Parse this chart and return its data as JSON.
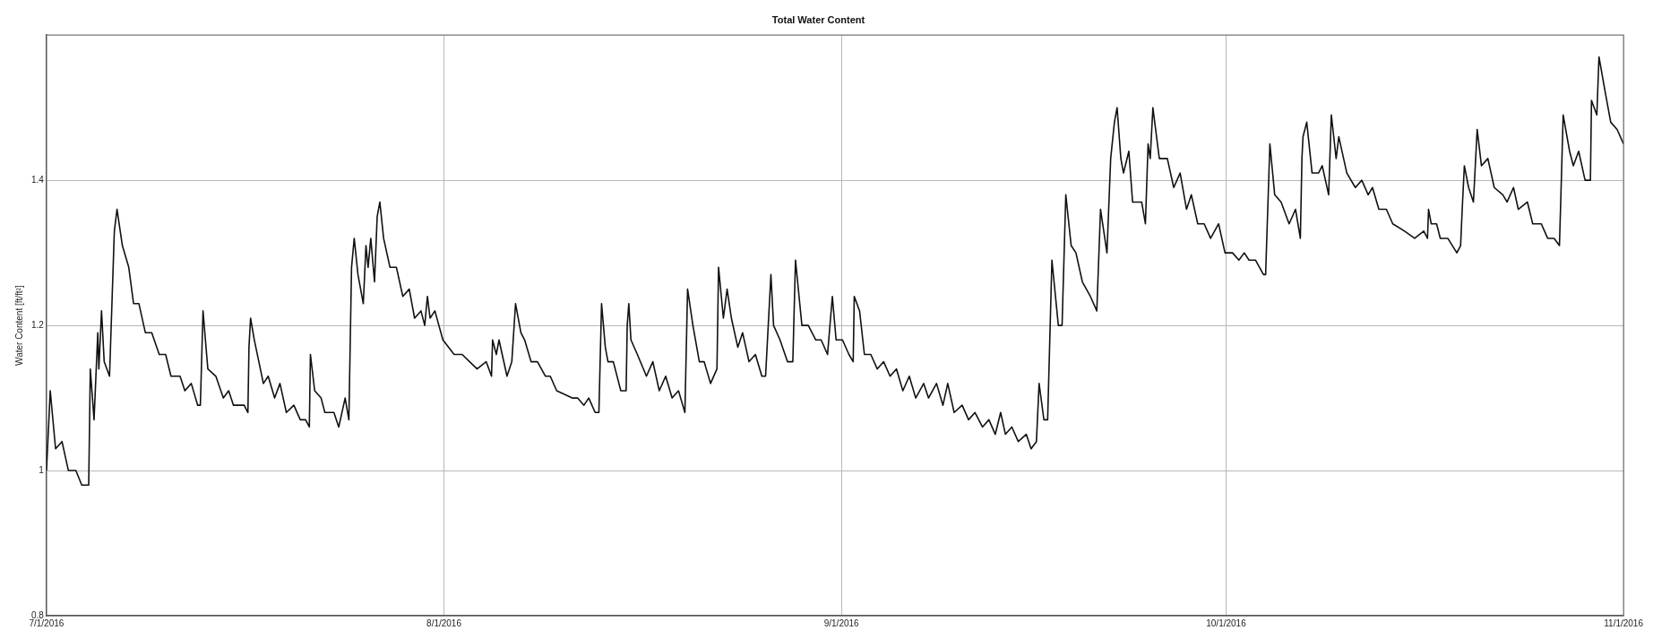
{
  "chart_data": {
    "type": "line",
    "title": "Total Water Content",
    "ylabel": "Water Content [ft/ft²]",
    "xlim": [
      "2016-07-01",
      "2016-11-01"
    ],
    "xticks": [
      {
        "value": "2016-07-01",
        "label": "7/1/2016"
      },
      {
        "value": "2016-08-01",
        "label": "8/1/2016"
      },
      {
        "value": "2016-09-01",
        "label": "9/1/2016"
      },
      {
        "value": "2016-10-01",
        "label": "10/1/2016"
      },
      {
        "value": "2016-11-01",
        "label": "11/1/2016"
      }
    ],
    "ylim": [
      0.8,
      1.6
    ],
    "yticks": [
      0.8,
      1,
      1.2,
      1.4
    ],
    "grid": true,
    "legend": false,
    "marker": "none",
    "line_style": "solid",
    "x": [
      "2016-07-01T00:00",
      "2016-07-01T07:00",
      "2016-07-01T17:00",
      "2016-07-02T05:00",
      "2016-07-02T17:00",
      "2016-07-03T07:00",
      "2016-07-03T18:00",
      "2016-07-04T07:00",
      "2016-07-04T10:00",
      "2016-07-04T17:00",
      "2016-07-05T00:00",
      "2016-07-05T02:00",
      "2016-07-05T07:00",
      "2016-07-05T12:00",
      "2016-07-05T22:00",
      "2016-07-06T07:00",
      "2016-07-06T12:00",
      "2016-07-06T22:00",
      "2016-07-07T10:00",
      "2016-07-07T19:00",
      "2016-07-08T05:00",
      "2016-07-08T17:00",
      "2016-07-09T05:00",
      "2016-07-09T19:00",
      "2016-07-10T07:00",
      "2016-07-10T17:00",
      "2016-07-11T10:00",
      "2016-07-11T19:00",
      "2016-07-12T07:00",
      "2016-07-12T19:00",
      "2016-07-13T00:00",
      "2016-07-13T05:00",
      "2016-07-13T14:00",
      "2016-07-14T05:00",
      "2016-07-14T19:00",
      "2016-07-15T05:00",
      "2016-07-15T14:00",
      "2016-07-16T10:00",
      "2016-07-16T17:00",
      "2016-07-16T19:00",
      "2016-07-16T22:00",
      "2016-07-17T05:00",
      "2016-07-17T22:00",
      "2016-07-18T07:00",
      "2016-07-18T19:00",
      "2016-07-19T05:00",
      "2016-07-19T17:00",
      "2016-07-20T07:00",
      "2016-07-20T19:00",
      "2016-07-21T05:00",
      "2016-07-21T12:00",
      "2016-07-21T14:00",
      "2016-07-21T22:00",
      "2016-07-22T10:00",
      "2016-07-22T17:00",
      "2016-07-23T10:00",
      "2016-07-23T19:00",
      "2016-07-24T07:00",
      "2016-07-24T14:00",
      "2016-07-24T19:00",
      "2016-07-25T00:00",
      "2016-07-25T07:00",
      "2016-07-25T17:00",
      "2016-07-25T22:00",
      "2016-07-26T02:00",
      "2016-07-26T07:00",
      "2016-07-26T14:00",
      "2016-07-26T19:00",
      "2016-07-27T00:00",
      "2016-07-27T07:00",
      "2016-07-27T19:00",
      "2016-07-28T07:00",
      "2016-07-28T19:00",
      "2016-07-29T07:00",
      "2016-07-29T17:00",
      "2016-07-30T05:00",
      "2016-07-30T12:00",
      "2016-07-30T17:00",
      "2016-07-30T22:00",
      "2016-07-31T07:00",
      "2016-07-31T22:00",
      "2016-08-01T19:00",
      "2016-08-02T10:00",
      "2016-08-03T00:00",
      "2016-08-03T14:00",
      "2016-08-04T07:00",
      "2016-08-04T17:00",
      "2016-08-04T19:00",
      "2016-08-05T02:00",
      "2016-08-05T07:00",
      "2016-08-05T22:00",
      "2016-08-06T07:00",
      "2016-08-06T14:00",
      "2016-08-07T00:00",
      "2016-08-07T07:00",
      "2016-08-07T19:00",
      "2016-08-08T07:00",
      "2016-08-08T22:00",
      "2016-08-09T07:00",
      "2016-08-09T19:00",
      "2016-08-11T00:00",
      "2016-08-11T10:00",
      "2016-08-11T22:00",
      "2016-08-12T07:00",
      "2016-08-12T19:00",
      "2016-08-13T02:00",
      "2016-08-13T07:00",
      "2016-08-13T14:00",
      "2016-08-13T19:00",
      "2016-08-14T05:00",
      "2016-08-14T19:00",
      "2016-08-15T05:00",
      "2016-08-15T07:00",
      "2016-08-15T10:00",
      "2016-08-15T14:00",
      "2016-08-16T02:00",
      "2016-08-16T19:00",
      "2016-08-17T07:00",
      "2016-08-17T19:00",
      "2016-08-18T07:00",
      "2016-08-18T19:00",
      "2016-08-19T07:00",
      "2016-08-19T19:00",
      "2016-08-20T00:00",
      "2016-08-20T10:00",
      "2016-08-20T22:00",
      "2016-08-21T07:00",
      "2016-08-21T19:00",
      "2016-08-22T07:00",
      "2016-08-22T10:00",
      "2016-08-22T19:00",
      "2016-08-23T02:00",
      "2016-08-23T10:00",
      "2016-08-23T22:00",
      "2016-08-24T07:00",
      "2016-08-24T19:00",
      "2016-08-25T07:00",
      "2016-08-25T19:00",
      "2016-08-26T02:00",
      "2016-08-26T07:00",
      "2016-08-26T12:00",
      "2016-08-26T17:00",
      "2016-08-27T05:00",
      "2016-08-27T19:00",
      "2016-08-28T05:00",
      "2016-08-28T10:00",
      "2016-08-28T22:00",
      "2016-08-29T10:00",
      "2016-08-30T00:00",
      "2016-08-30T10:00",
      "2016-08-30T22:00",
      "2016-08-31T07:00",
      "2016-08-31T14:00",
      "2016-09-01T02:00",
      "2016-09-01T14:00",
      "2016-09-01T22:00",
      "2016-09-02T00:00",
      "2016-09-02T10:00",
      "2016-09-02T19:00",
      "2016-09-03T07:00",
      "2016-09-03T19:00",
      "2016-09-04T07:00",
      "2016-09-04T19:00",
      "2016-09-05T07:00",
      "2016-09-05T19:00",
      "2016-09-06T07:00",
      "2016-09-06T19:00",
      "2016-09-07T10:00",
      "2016-09-07T19:00",
      "2016-09-08T10:00",
      "2016-09-08T22:00",
      "2016-09-09T07:00",
      "2016-09-09T19:00",
      "2016-09-10T10:00",
      "2016-09-10T22:00",
      "2016-09-11T10:00",
      "2016-09-12T00:00",
      "2016-09-12T12:00",
      "2016-09-13T00:00",
      "2016-09-13T10:00",
      "2016-09-13T19:00",
      "2016-09-14T07:00",
      "2016-09-14T19:00",
      "2016-09-15T10:00",
      "2016-09-15T19:00",
      "2016-09-16T05:00",
      "2016-09-16T10:00",
      "2016-09-16T19:00",
      "2016-09-17T02:00",
      "2016-09-17T10:00",
      "2016-09-17T22:00",
      "2016-09-18T05:00",
      "2016-09-18T12:00",
      "2016-09-18T22:00",
      "2016-09-19T07:00",
      "2016-09-19T19:00",
      "2016-09-20T10:00",
      "2016-09-20T22:00",
      "2016-09-21T05:00",
      "2016-09-21T17:00",
      "2016-09-22T00:00",
      "2016-09-22T07:00",
      "2016-09-22T12:00",
      "2016-09-22T19:00",
      "2016-09-23T00:00",
      "2016-09-23T10:00",
      "2016-09-23T17:00",
      "2016-09-24T10:00",
      "2016-09-24T17:00",
      "2016-09-24T22:00",
      "2016-09-25T02:00",
      "2016-09-25T07:00",
      "2016-09-25T19:00",
      "2016-09-26T10:00",
      "2016-09-26T22:00",
      "2016-09-27T10:00",
      "2016-09-27T22:00",
      "2016-09-28T07:00",
      "2016-09-28T19:00",
      "2016-09-29T07:00",
      "2016-09-29T19:00",
      "2016-09-30T10:00",
      "2016-09-30T22:00",
      "2016-10-01T12:00",
      "2016-10-02T00:00",
      "2016-10-02T10:00",
      "2016-10-02T19:00",
      "2016-10-03T07:00",
      "2016-10-03T22:00",
      "2016-10-04T02:00",
      "2016-10-04T10:00",
      "2016-10-04T19:00",
      "2016-10-05T07:00",
      "2016-10-05T22:00",
      "2016-10-06T10:00",
      "2016-10-06T19:00",
      "2016-10-06T22:00",
      "2016-10-07T00:00",
      "2016-10-07T07:00",
      "2016-10-07T17:00",
      "2016-10-08T05:00",
      "2016-10-08T12:00",
      "2016-10-09T00:00",
      "2016-10-09T05:00",
      "2016-10-09T14:00",
      "2016-10-09T19:00",
      "2016-10-10T10:00",
      "2016-10-11T02:00",
      "2016-10-11T14:00",
      "2016-10-12T02:00",
      "2016-10-12T10:00",
      "2016-10-12T22:00",
      "2016-10-13T12:00",
      "2016-10-14T00:00",
      "2016-10-14T22:00",
      "2016-10-15T17:00",
      "2016-10-16T10:00",
      "2016-10-16T17:00",
      "2016-10-16T19:00",
      "2016-10-17T00:00",
      "2016-10-17T10:00",
      "2016-10-17T17:00",
      "2016-10-18T07:00",
      "2016-10-19T00:00",
      "2016-10-19T07:00",
      "2016-10-19T10:00",
      "2016-10-19T14:00",
      "2016-10-19T22:00",
      "2016-10-20T07:00",
      "2016-10-20T14:00",
      "2016-10-20T22:00",
      "2016-10-21T10:00",
      "2016-10-21T22:00",
      "2016-10-22T14:00",
      "2016-10-22T22:00",
      "2016-10-23T10:00",
      "2016-10-23T19:00",
      "2016-10-24T12:00",
      "2016-10-24T22:00",
      "2016-10-25T14:00",
      "2016-10-26T02:00",
      "2016-10-26T14:00",
      "2016-10-27T00:00",
      "2016-10-27T02:00",
      "2016-10-27T07:00",
      "2016-10-27T19:00",
      "2016-10-28T02:00",
      "2016-10-28T12:00",
      "2016-10-29T00:00",
      "2016-10-29T10:00",
      "2016-10-29T12:00",
      "2016-10-29T22:00",
      "2016-10-30T02:00",
      "2016-10-30T14:00",
      "2016-10-31T00:00",
      "2016-10-31T12:00",
      "2016-11-01T00:00"
    ],
    "series": [
      {
        "color": "#111111",
        "values": [
          1.0,
          1.11,
          1.03,
          1.04,
          1.0,
          1.0,
          0.98,
          0.98,
          1.14,
          1.07,
          1.19,
          1.14,
          1.22,
          1.15,
          1.13,
          1.33,
          1.36,
          1.31,
          1.28,
          1.23,
          1.23,
          1.19,
          1.19,
          1.16,
          1.16,
          1.13,
          1.13,
          1.11,
          1.12,
          1.09,
          1.09,
          1.22,
          1.14,
          1.13,
          1.1,
          1.11,
          1.09,
          1.09,
          1.08,
          1.17,
          1.21,
          1.18,
          1.12,
          1.13,
          1.1,
          1.12,
          1.08,
          1.09,
          1.07,
          1.07,
          1.06,
          1.16,
          1.11,
          1.1,
          1.08,
          1.08,
          1.06,
          1.1,
          1.07,
          1.28,
          1.32,
          1.27,
          1.23,
          1.31,
          1.28,
          1.32,
          1.26,
          1.35,
          1.37,
          1.32,
          1.28,
          1.28,
          1.24,
          1.25,
          1.21,
          1.22,
          1.2,
          1.24,
          1.21,
          1.22,
          1.18,
          1.16,
          1.16,
          1.15,
          1.14,
          1.15,
          1.13,
          1.18,
          1.16,
          1.18,
          1.13,
          1.15,
          1.23,
          1.19,
          1.18,
          1.15,
          1.15,
          1.13,
          1.13,
          1.11,
          1.1,
          1.1,
          1.09,
          1.1,
          1.08,
          1.08,
          1.23,
          1.17,
          1.15,
          1.15,
          1.11,
          1.11,
          1.2,
          1.23,
          1.18,
          1.16,
          1.13,
          1.15,
          1.11,
          1.13,
          1.1,
          1.11,
          1.08,
          1.25,
          1.2,
          1.15,
          1.15,
          1.12,
          1.14,
          1.28,
          1.21,
          1.25,
          1.21,
          1.17,
          1.19,
          1.15,
          1.16,
          1.13,
          1.13,
          1.2,
          1.27,
          1.2,
          1.18,
          1.15,
          1.15,
          1.29,
          1.2,
          1.2,
          1.18,
          1.18,
          1.16,
          1.24,
          1.18,
          1.18,
          1.16,
          1.15,
          1.24,
          1.22,
          1.16,
          1.16,
          1.14,
          1.15,
          1.13,
          1.14,
          1.11,
          1.13,
          1.1,
          1.12,
          1.1,
          1.12,
          1.09,
          1.12,
          1.08,
          1.09,
          1.07,
          1.08,
          1.06,
          1.07,
          1.05,
          1.08,
          1.05,
          1.06,
          1.04,
          1.05,
          1.03,
          1.04,
          1.12,
          1.07,
          1.07,
          1.29,
          1.2,
          1.2,
          1.38,
          1.31,
          1.3,
          1.26,
          1.24,
          1.22,
          1.36,
          1.3,
          1.43,
          1.48,
          1.5,
          1.43,
          1.41,
          1.44,
          1.37,
          1.37,
          1.34,
          1.45,
          1.43,
          1.5,
          1.43,
          1.43,
          1.39,
          1.41,
          1.36,
          1.38,
          1.34,
          1.34,
          1.32,
          1.34,
          1.3,
          1.3,
          1.29,
          1.3,
          1.29,
          1.29,
          1.27,
          1.27,
          1.45,
          1.38,
          1.37,
          1.34,
          1.36,
          1.32,
          1.43,
          1.46,
          1.48,
          1.41,
          1.41,
          1.42,
          1.38,
          1.49,
          1.43,
          1.46,
          1.41,
          1.39,
          1.4,
          1.38,
          1.39,
          1.36,
          1.36,
          1.34,
          1.33,
          1.32,
          1.33,
          1.32,
          1.36,
          1.34,
          1.34,
          1.32,
          1.32,
          1.3,
          1.31,
          1.36,
          1.42,
          1.39,
          1.37,
          1.47,
          1.42,
          1.43,
          1.39,
          1.38,
          1.37,
          1.39,
          1.36,
          1.37,
          1.34,
          1.34,
          1.32,
          1.32,
          1.31,
          1.36,
          1.49,
          1.44,
          1.42,
          1.44,
          1.4,
          1.4,
          1.51,
          1.49,
          1.57,
          1.52,
          1.48,
          1.47,
          1.45
        ]
      }
    ]
  }
}
